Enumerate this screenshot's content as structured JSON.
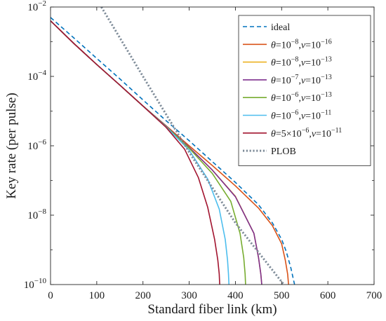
{
  "chart_data": {
    "type": "line",
    "xlabel": "Standard fiber link (km)",
    "ylabel": "Key rate (per pulse)",
    "xlim": [
      0,
      700
    ],
    "ylim": [
      1e-10,
      0.01
    ],
    "yscale": "log",
    "grid": false,
    "legend_position": "top-right",
    "x_ticks": [
      "0",
      "100",
      "200",
      "300",
      "400",
      "500",
      "600",
      "700"
    ],
    "y_ticks": [
      {
        "base": "10",
        "exp": "−10"
      },
      {
        "base": "10",
        "exp": "−8"
      },
      {
        "base": "10",
        "exp": "−6"
      },
      {
        "base": "10",
        "exp": "−4"
      },
      {
        "base": "10",
        "exp": "−2"
      }
    ],
    "series": [
      {
        "name": "ideal",
        "legend_parts": [
          {
            "t": "ideal",
            "it": false
          }
        ],
        "color": "#0072BD",
        "dash": "dashed",
        "x": [
          0,
          50,
          100,
          150,
          200,
          250,
          300,
          350,
          400,
          450,
          480,
          500,
          510,
          520,
          525,
          528
        ],
        "y": [
          0.005,
          0.0013,
          0.00033,
          8.5e-05,
          2.1e-05,
          5.3e-06,
          1.4e-06,
          3.5e-07,
          8.8e-08,
          2e-08,
          6e-09,
          2e-09,
          9e-10,
          3e-10,
          1.5e-10,
          1e-10
        ]
      },
      {
        "name": "θ=10^−8, ν=10^−16",
        "legend_parts": [
          {
            "t": "θ",
            "it": true
          },
          {
            "t": "=10",
            "it": false
          },
          {
            "t": "−8",
            "sup": true
          },
          {
            "t": ",",
            "it": false
          },
          {
            "t": "ν",
            "it": true
          },
          {
            "t": "=10",
            "it": false
          },
          {
            "t": "−16",
            "sup": true
          }
        ],
        "color": "#D95319",
        "dash": "solid",
        "x": [
          0,
          50,
          100,
          150,
          200,
          250,
          300,
          350,
          400,
          450,
          480,
          500,
          508,
          513,
          515
        ],
        "y": [
          0.004,
          0.0009,
          0.00022,
          5.6e-05,
          1.4e-05,
          3.8e-06,
          1e-06,
          2.7e-07,
          7e-08,
          1.6e-08,
          5e-09,
          1.5e-09,
          5e-10,
          2e-10,
          1e-10
        ]
      },
      {
        "name": "θ=10^−8, ν=10^−13",
        "legend_parts": [
          {
            "t": "θ",
            "it": true
          },
          {
            "t": "=10",
            "it": false
          },
          {
            "t": "−8",
            "sup": true
          },
          {
            "t": ",",
            "it": false
          },
          {
            "t": "ν",
            "it": true
          },
          {
            "t": "=10",
            "it": false
          },
          {
            "t": "−13",
            "sup": true
          }
        ],
        "color": "#EDB120",
        "dash": "solid",
        "x": [
          0,
          50,
          100,
          150,
          200,
          250,
          300,
          350,
          400,
          440,
          450,
          455,
          457
        ],
        "y": [
          0.004,
          0.0009,
          0.00022,
          5.6e-05,
          1.4e-05,
          3.7e-06,
          9e-07,
          2e-07,
          3.5e-08,
          3e-09,
          6e-10,
          2e-10,
          1e-10
        ]
      },
      {
        "name": "θ=10^−7, ν=10^−13",
        "legend_parts": [
          {
            "t": "θ",
            "it": true
          },
          {
            "t": "=10",
            "it": false
          },
          {
            "t": "−7",
            "sup": true
          },
          {
            "t": ",",
            "it": false
          },
          {
            "t": "ν",
            "it": true
          },
          {
            "t": "=10",
            "it": false
          },
          {
            "t": "−13",
            "sup": true
          }
        ],
        "color": "#7E2F8E",
        "dash": "solid",
        "x": [
          0,
          50,
          100,
          150,
          200,
          250,
          300,
          350,
          400,
          440,
          450,
          455,
          457
        ],
        "y": [
          0.004,
          0.0009,
          0.00022,
          5.6e-05,
          1.4e-05,
          3.7e-06,
          9e-07,
          2e-07,
          3.4e-08,
          3e-09,
          6e-10,
          2e-10,
          1e-10
        ]
      },
      {
        "name": "θ=10^−6, ν=10^−13",
        "legend_parts": [
          {
            "t": "θ",
            "it": true
          },
          {
            "t": "=10",
            "it": false
          },
          {
            "t": "−6",
            "sup": true
          },
          {
            "t": ",",
            "it": false
          },
          {
            "t": "ν",
            "it": true
          },
          {
            "t": "=10",
            "it": false
          },
          {
            "t": "−13",
            "sup": true
          }
        ],
        "color": "#77AC30",
        "dash": "solid",
        "x": [
          0,
          50,
          100,
          150,
          200,
          250,
          300,
          350,
          390,
          410,
          418,
          421,
          422
        ],
        "y": [
          0.004,
          0.0009,
          0.00022,
          5.6e-05,
          1.4e-05,
          3.6e-06,
          8.5e-07,
          1.6e-07,
          2.5e-08,
          3e-09,
          6e-10,
          2e-10,
          1e-10
        ]
      },
      {
        "name": "θ=10^−6, ν=10^−11",
        "legend_parts": [
          {
            "t": "θ",
            "it": true
          },
          {
            "t": "=10",
            "it": false
          },
          {
            "t": "−6",
            "sup": true
          },
          {
            "t": ",",
            "it": false
          },
          {
            "t": "ν",
            "it": true
          },
          {
            "t": "=10",
            "it": false
          },
          {
            "t": "−11",
            "sup": true
          }
        ],
        "color": "#4DBEEE",
        "dash": "solid",
        "x": [
          0,
          50,
          100,
          150,
          200,
          250,
          300,
          340,
          365,
          378,
          383,
          385,
          386
        ],
        "y": [
          0.004,
          0.0009,
          0.00022,
          5.6e-05,
          1.4e-05,
          3.5e-06,
          7.5e-07,
          1.1e-07,
          1.5e-08,
          2e-09,
          5e-10,
          2e-10,
          1e-10
        ]
      },
      {
        "name": "θ=5×10^−6, ν=10^−11",
        "legend_parts": [
          {
            "t": "θ",
            "it": true
          },
          {
            "t": "=5×10",
            "it": false
          },
          {
            "t": "−6",
            "sup": true
          },
          {
            "t": ",",
            "it": false
          },
          {
            "t": "ν",
            "it": true
          },
          {
            "t": "=10",
            "it": false
          },
          {
            "t": "−11",
            "sup": true
          }
        ],
        "color": "#A2142F",
        "dash": "solid",
        "x": [
          0,
          50,
          100,
          150,
          200,
          250,
          290,
          320,
          340,
          355,
          362,
          365,
          366
        ],
        "y": [
          0.004,
          0.0009,
          0.00022,
          5.6e-05,
          1.4e-05,
          3.4e-06,
          8e-07,
          1.2e-07,
          1.7e-08,
          2e-09,
          5e-10,
          2e-10,
          1e-10
        ]
      },
      {
        "name": "PLOB",
        "legend_parts": [
          {
            "t": "PLOB",
            "it": false
          }
        ],
        "color": "#7F8C99",
        "dash": "dotted",
        "x": [
          110,
          200,
          300,
          400,
          500,
          505
        ],
        "y": [
          0.01,
          0.0001,
          6.5e-07,
          6e-09,
          1.2e-10,
          1e-10
        ]
      }
    ]
  }
}
